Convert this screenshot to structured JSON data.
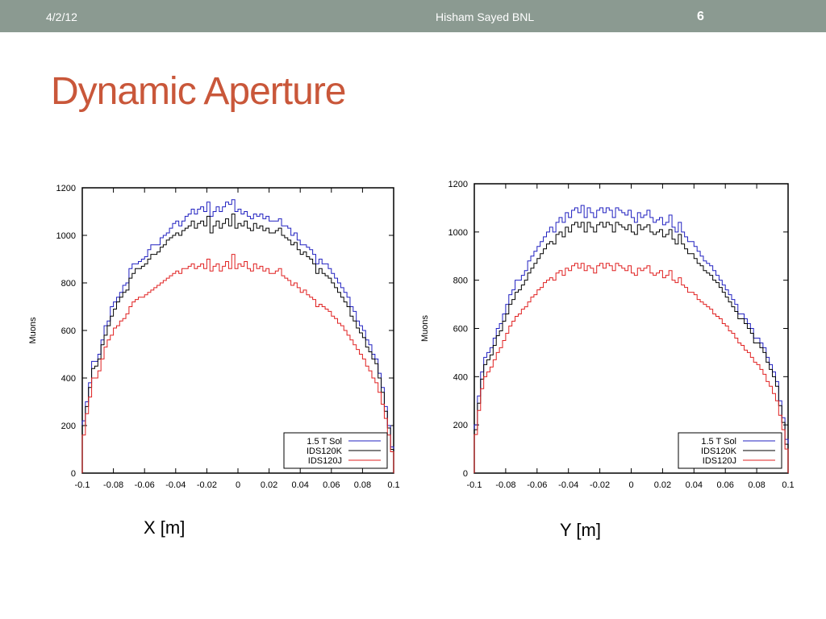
{
  "slide": {
    "date": "4/2/12",
    "author": "Hisham Sayed BNL",
    "page_number": "6",
    "title": "Dynamic Aperture",
    "title_color": "#c9573a",
    "header_bar_color": "#8b9a91"
  },
  "captions": {
    "left": "X [m]",
    "right": "Y [m]"
  },
  "chart_data": [
    {
      "type": "line",
      "ylabel": "Muons",
      "xlim": [
        -0.1,
        0.1
      ],
      "ylim": [
        0,
        1200
      ],
      "xticks": [
        "-0.1",
        "-0.08",
        "-0.06",
        "-0.04",
        "-0.02",
        "0",
        "0.02",
        "0.04",
        "0.06",
        "0.08",
        "0.1"
      ],
      "yticks": [
        "0",
        "200",
        "400",
        "600",
        "800",
        "1000",
        "1200"
      ],
      "legend_position": "bottom-right",
      "x": [
        -0.099,
        -0.097,
        -0.095,
        -0.093,
        -0.091,
        -0.089,
        -0.087,
        -0.085,
        -0.083,
        -0.081,
        -0.079,
        -0.077,
        -0.075,
        -0.073,
        -0.071,
        -0.069,
        -0.067,
        -0.065,
        -0.063,
        -0.061,
        -0.059,
        -0.057,
        -0.055,
        -0.053,
        -0.051,
        -0.049,
        -0.047,
        -0.045,
        -0.043,
        -0.041,
        -0.039,
        -0.037,
        -0.035,
        -0.033,
        -0.031,
        -0.029,
        -0.027,
        -0.025,
        -0.023,
        -0.021,
        -0.019,
        -0.017,
        -0.015,
        -0.013,
        -0.011,
        -0.009,
        -0.007,
        -0.005,
        -0.003,
        -0.001,
        0.001,
        0.003,
        0.005,
        0.007,
        0.009,
        0.011,
        0.013,
        0.015,
        0.017,
        0.019,
        0.021,
        0.023,
        0.025,
        0.027,
        0.029,
        0.031,
        0.033,
        0.035,
        0.037,
        0.039,
        0.041,
        0.043,
        0.045,
        0.047,
        0.049,
        0.051,
        0.053,
        0.055,
        0.057,
        0.059,
        0.061,
        0.063,
        0.065,
        0.067,
        0.069,
        0.071,
        0.073,
        0.075,
        0.077,
        0.079,
        0.081,
        0.083,
        0.085,
        0.087,
        0.089,
        0.091,
        0.093,
        0.095,
        0.097,
        0.099
      ],
      "series": [
        {
          "name": "1.5 T Sol",
          "color": "#2020c0",
          "values": [
            220,
            300,
            380,
            470,
            470,
            500,
            560,
            620,
            640,
            700,
            720,
            740,
            760,
            790,
            800,
            860,
            880,
            880,
            890,
            900,
            910,
            940,
            960,
            960,
            960,
            990,
            1000,
            1010,
            1030,
            1050,
            1060,
            1040,
            1060,
            1080,
            1090,
            1110,
            1090,
            1110,
            1120,
            1100,
            1140,
            1080,
            1100,
            1120,
            1100,
            1120,
            1140,
            1130,
            1150,
            1100,
            1110,
            1090,
            1100,
            1080,
            1070,
            1090,
            1080,
            1090,
            1070,
            1080,
            1060,
            1060,
            1060,
            1070,
            1040,
            1040,
            1030,
            1000,
            1010,
            980,
            960,
            960,
            950,
            940,
            920,
            880,
            900,
            880,
            880,
            860,
            840,
            820,
            800,
            780,
            760,
            740,
            700,
            680,
            640,
            620,
            600,
            560,
            540,
            500,
            480,
            420,
            360,
            280,
            200,
            110
          ]
        },
        {
          "name": "IDS120K",
          "color": "#000000",
          "values": [
            200,
            280,
            360,
            440,
            450,
            480,
            540,
            580,
            620,
            660,
            690,
            720,
            740,
            760,
            770,
            820,
            840,
            860,
            860,
            870,
            880,
            900,
            920,
            920,
            930,
            950,
            960,
            980,
            990,
            1000,
            1010,
            1000,
            1020,
            1030,
            1040,
            1060,
            1030,
            1050,
            1060,
            1040,
            1080,
            1010,
            1040,
            1060,
            1030,
            1050,
            1070,
            1040,
            1090,
            1030,
            1050,
            1040,
            1060,
            1030,
            1020,
            1050,
            1030,
            1040,
            1020,
            1030,
            1010,
            1010,
            1020,
            1030,
            1000,
            990,
            980,
            960,
            970,
            940,
            920,
            930,
            910,
            900,
            880,
            840,
            860,
            840,
            830,
            820,
            800,
            780,
            760,
            740,
            720,
            700,
            660,
            640,
            610,
            590,
            570,
            530,
            510,
            480,
            460,
            400,
            340,
            260,
            190,
            100
          ]
        },
        {
          "name": "IDS120J",
          "color": "#e02020",
          "values": [
            160,
            250,
            320,
            400,
            400,
            430,
            480,
            530,
            560,
            580,
            610,
            620,
            640,
            650,
            670,
            700,
            720,
            730,
            740,
            740,
            750,
            760,
            770,
            780,
            790,
            800,
            810,
            820,
            830,
            840,
            850,
            840,
            860,
            860,
            870,
            880,
            860,
            870,
            880,
            860,
            900,
            850,
            870,
            880,
            850,
            870,
            890,
            860,
            920,
            860,
            880,
            870,
            890,
            860,
            850,
            880,
            860,
            870,
            850,
            860,
            840,
            840,
            850,
            860,
            830,
            820,
            810,
            790,
            800,
            780,
            760,
            770,
            750,
            740,
            730,
            700,
            710,
            700,
            690,
            680,
            660,
            650,
            630,
            620,
            600,
            580,
            560,
            540,
            520,
            500,
            480,
            450,
            430,
            400,
            380,
            340,
            290,
            230,
            160,
            90
          ]
        }
      ]
    },
    {
      "type": "line",
      "ylabel": "Muons",
      "xlim": [
        -0.1,
        0.1
      ],
      "ylim": [
        0,
        1200
      ],
      "xticks": [
        "-0.1",
        "-0.08",
        "-0.06",
        "-0.04",
        "-0.02",
        "0",
        "0.02",
        "0.04",
        "0.06",
        "0.08",
        "0.1"
      ],
      "yticks": [
        "0",
        "200",
        "400",
        "600",
        "800",
        "1000",
        "1200"
      ],
      "legend_position": "bottom-right",
      "x": [
        -0.099,
        -0.097,
        -0.095,
        -0.093,
        -0.091,
        -0.089,
        -0.087,
        -0.085,
        -0.083,
        -0.081,
        -0.079,
        -0.077,
        -0.075,
        -0.073,
        -0.071,
        -0.069,
        -0.067,
        -0.065,
        -0.063,
        -0.061,
        -0.059,
        -0.057,
        -0.055,
        -0.053,
        -0.051,
        -0.049,
        -0.047,
        -0.045,
        -0.043,
        -0.041,
        -0.039,
        -0.037,
        -0.035,
        -0.033,
        -0.031,
        -0.029,
        -0.027,
        -0.025,
        -0.023,
        -0.021,
        -0.019,
        -0.017,
        -0.015,
        -0.013,
        -0.011,
        -0.009,
        -0.007,
        -0.005,
        -0.003,
        -0.001,
        0.001,
        0.003,
        0.005,
        0.007,
        0.009,
        0.011,
        0.013,
        0.015,
        0.017,
        0.019,
        0.021,
        0.023,
        0.025,
        0.027,
        0.029,
        0.031,
        0.033,
        0.035,
        0.037,
        0.039,
        0.041,
        0.043,
        0.045,
        0.047,
        0.049,
        0.051,
        0.053,
        0.055,
        0.057,
        0.059,
        0.061,
        0.063,
        0.065,
        0.067,
        0.069,
        0.071,
        0.073,
        0.075,
        0.077,
        0.079,
        0.081,
        0.083,
        0.085,
        0.087,
        0.089,
        0.091,
        0.093,
        0.095,
        0.097,
        0.099
      ],
      "series": [
        {
          "name": "1.5 T Sol",
          "color": "#2020c0",
          "values": [
            200,
            320,
            420,
            480,
            500,
            520,
            560,
            600,
            620,
            660,
            700,
            740,
            760,
            800,
            800,
            820,
            840,
            880,
            900,
            920,
            940,
            960,
            980,
            1000,
            1020,
            1000,
            1040,
            1060,
            1040,
            1080,
            1060,
            1090,
            1100,
            1080,
            1110,
            1060,
            1100,
            1080,
            1060,
            1090,
            1100,
            1080,
            1100,
            1090,
            1060,
            1100,
            1090,
            1080,
            1070,
            1090,
            1060,
            1040,
            1080,
            1060,
            1070,
            1090,
            1060,
            1040,
            1050,
            1060,
            1030,
            1040,
            1070,
            1020,
            1000,
            1040,
            1000,
            980,
            960,
            960,
            940,
            920,
            900,
            880,
            870,
            860,
            840,
            820,
            800,
            780,
            760,
            740,
            720,
            700,
            660,
            660,
            640,
            620,
            600,
            560,
            560,
            540,
            520,
            480,
            450,
            420,
            380,
            300,
            230,
            140
          ]
        },
        {
          "name": "IDS120K",
          "color": "#000000",
          "values": [
            180,
            290,
            390,
            450,
            470,
            490,
            530,
            570,
            590,
            630,
            660,
            700,
            720,
            750,
            760,
            780,
            800,
            830,
            850,
            870,
            890,
            910,
            930,
            950,
            960,
            950,
            990,
            1000,
            980,
            1020,
            1000,
            1030,
            1040,
            1020,
            1040,
            1000,
            1040,
            1020,
            1000,
            1030,
            1040,
            1020,
            1040,
            1030,
            1000,
            1040,
            1030,
            1020,
            1010,
            1030,
            1000,
            990,
            1030,
            1010,
            1020,
            1030,
            1000,
            990,
            1000,
            1010,
            980,
            990,
            1010,
            970,
            950,
            990,
            950,
            930,
            910,
            910,
            890,
            870,
            860,
            840,
            830,
            820,
            800,
            790,
            770,
            750,
            730,
            710,
            690,
            670,
            640,
            640,
            620,
            600,
            580,
            540,
            540,
            520,
            500,
            460,
            430,
            400,
            360,
            280,
            210,
            120
          ]
        },
        {
          "name": "IDS120J",
          "color": "#e02020",
          "values": [
            160,
            260,
            350,
            400,
            420,
            440,
            470,
            500,
            520,
            550,
            580,
            610,
            630,
            650,
            660,
            680,
            690,
            710,
            730,
            740,
            760,
            770,
            790,
            800,
            810,
            800,
            830,
            840,
            820,
            850,
            840,
            860,
            870,
            850,
            870,
            840,
            860,
            850,
            830,
            860,
            870,
            850,
            870,
            860,
            840,
            870,
            860,
            850,
            840,
            860,
            830,
            820,
            850,
            840,
            850,
            860,
            830,
            820,
            830,
            840,
            810,
            820,
            840,
            800,
            790,
            810,
            780,
            770,
            750,
            750,
            740,
            720,
            710,
            700,
            690,
            680,
            660,
            650,
            640,
            620,
            610,
            590,
            580,
            560,
            540,
            530,
            510,
            500,
            480,
            460,
            450,
            430,
            410,
            380,
            360,
            330,
            300,
            240,
            180,
            100
          ]
        }
      ]
    }
  ]
}
